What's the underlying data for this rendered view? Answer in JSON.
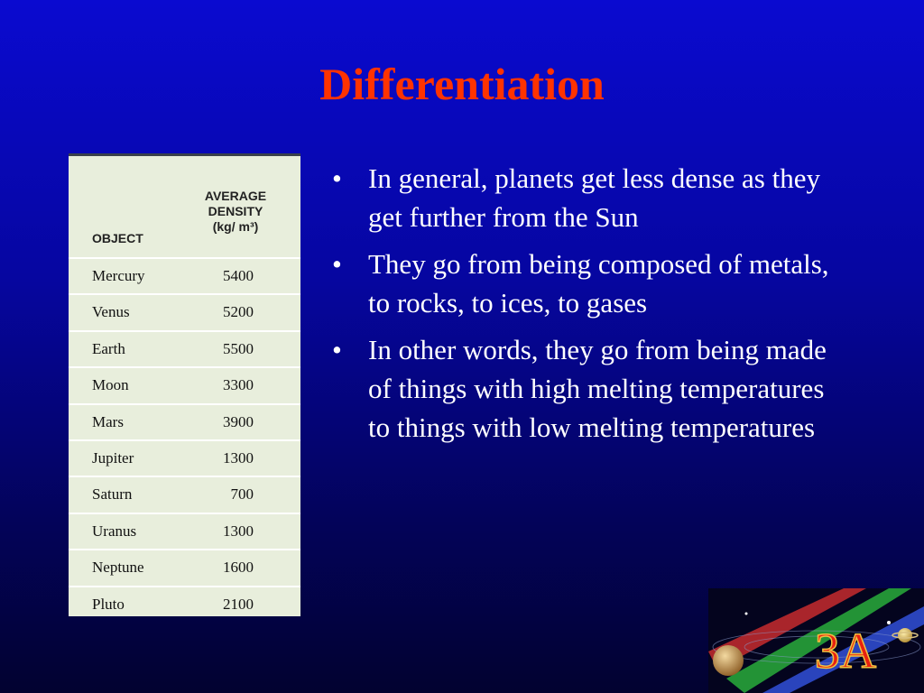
{
  "header": {
    "title": "Differentiation"
  },
  "table": {
    "columns": [
      "OBJECT",
      [
        "AVERAGE",
        "DENSITY",
        "(kg/ m³)"
      ]
    ],
    "rows": [
      [
        "Mercury",
        5400
      ],
      [
        "Venus",
        5200
      ],
      [
        "Earth",
        5500
      ],
      [
        "Moon",
        3300
      ],
      [
        "Mars",
        3900
      ],
      [
        "Jupiter",
        1300
      ],
      [
        "Saturn",
        700
      ],
      [
        "Uranus",
        1300
      ],
      [
        "Neptune",
        1600
      ],
      [
        "Pluto",
        2100
      ]
    ]
  },
  "bullets": [
    "In general, planets get less dense as they get further from the Sun",
    "They go from being composed of metals, to rocks, to ices, to gases",
    "In other words, they go from being made of things with high melting temperatures to things with low melting temperatures"
  ],
  "logo": {
    "text": "3A"
  }
}
